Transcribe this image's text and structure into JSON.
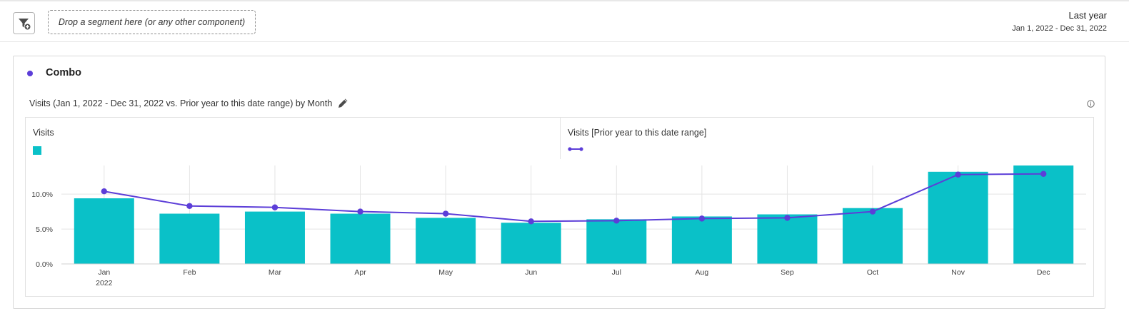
{
  "toolbar": {
    "dropzone_placeholder": "Drop a segment here (or any other component)",
    "date_range_title": "Last year",
    "date_range_value": "Jan 1, 2022 - Dec 31, 2022"
  },
  "panel": {
    "title": "Combo",
    "viz_title": "Visits (Jan 1, 2022 - Dec 31, 2022 vs. Prior year to this date range) by Month"
  },
  "colors": {
    "bar": "#0ac1c8",
    "line": "#5c3ed8",
    "grid": "#e4e4e4",
    "accent": "#5c3ed8"
  },
  "icons": [
    "filter-add-icon",
    "pencil-icon",
    "info-icon"
  ],
  "chart_data": {
    "type": "bar",
    "categories": [
      "Jan",
      "Feb",
      "Mar",
      "Apr",
      "May",
      "Jun",
      "Jul",
      "Aug",
      "Sep",
      "Oct",
      "Nov",
      "Dec"
    ],
    "x_sublabel": "2022",
    "series": [
      {
        "name": "Visits",
        "type": "bar",
        "values": [
          9.4,
          7.2,
          7.5,
          7.2,
          6.6,
          5.9,
          6.4,
          6.8,
          7.1,
          8.0,
          13.2,
          14.1
        ]
      },
      {
        "name": "Visits [Prior year to this date range]",
        "type": "line",
        "values": [
          10.4,
          8.3,
          8.1,
          7.5,
          7.2,
          6.1,
          6.2,
          6.5,
          6.6,
          7.5,
          12.8,
          12.9
        ]
      }
    ],
    "ylim": [
      0,
      14.1
    ],
    "yticks": [
      "0.0%",
      "5.0%",
      "10.0%"
    ],
    "ytick_values": [
      0,
      5,
      10
    ],
    "legend": "top",
    "grid": true
  }
}
